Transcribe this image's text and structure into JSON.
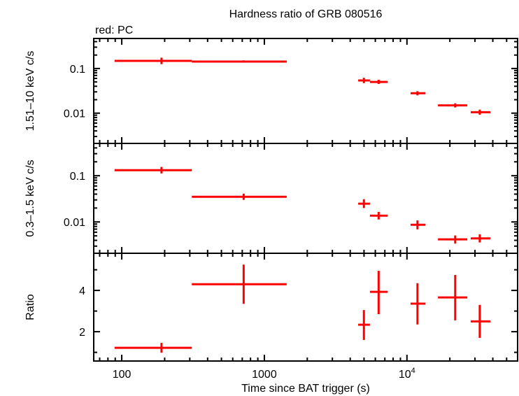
{
  "chart_data": {
    "type": "scatter",
    "title": "Hardness ratio of GRB 080516",
    "legend_note": "red: PC",
    "xlabel": "Time since BAT trigger (s)",
    "xscale": "log",
    "xlim": [
      63.6,
      59700
    ],
    "xticks": [
      {
        "v": 100,
        "label": "100"
      },
      {
        "v": 1000,
        "label": "1000"
      },
      {
        "v": 10000,
        "label": "10",
        "sup": "4"
      }
    ],
    "series_color": "#ff0000",
    "x": [
      {
        "v": 190,
        "lo": 89,
        "hi": 310
      },
      {
        "v": 716,
        "lo": 310,
        "hi": 1435
      },
      {
        "v": 4990,
        "lo": 4550,
        "hi": 5500
      },
      {
        "v": 6330,
        "lo": 5500,
        "hi": 7330
      },
      {
        "v": 11850,
        "lo": 10600,
        "hi": 13500
      },
      {
        "v": 21800,
        "lo": 16500,
        "hi": 26500
      },
      {
        "v": 32400,
        "lo": 28000,
        "hi": 38500
      }
    ],
    "panels": [
      {
        "ylabel": "1.51–10 keV c/s",
        "yscale": "log",
        "ylim": [
          0.0021,
          0.47
        ],
        "yticks": [
          {
            "v": 0.1,
            "label": "0.1"
          },
          {
            "v": 0.01,
            "label": "0.01"
          }
        ],
        "points": [
          {
            "y": 0.148,
            "lo": 0.125,
            "hi": 0.175
          },
          {
            "y": 0.143,
            "lo": 0.135,
            "hi": 0.152
          },
          {
            "y": 0.054,
            "lo": 0.047,
            "hi": 0.062
          },
          {
            "y": 0.05,
            "lo": 0.045,
            "hi": 0.056
          },
          {
            "y": 0.028,
            "lo": 0.025,
            "hi": 0.031
          },
          {
            "y": 0.0149,
            "lo": 0.0134,
            "hi": 0.0166
          },
          {
            "y": 0.0105,
            "lo": 0.0092,
            "hi": 0.012
          }
        ]
      },
      {
        "ylabel": "0.3–1.5 keV c/s",
        "yscale": "log",
        "ylim": [
          0.0021,
          0.5
        ],
        "yticks": [
          {
            "v": 0.1,
            "label": "0.1"
          },
          {
            "v": 0.01,
            "label": "0.01"
          }
        ],
        "points": [
          {
            "y": 0.132,
            "lo": 0.112,
            "hi": 0.155
          },
          {
            "y": 0.035,
            "lo": 0.03,
            "hi": 0.041
          },
          {
            "y": 0.0248,
            "lo": 0.02,
            "hi": 0.031
          },
          {
            "y": 0.0137,
            "lo": 0.0113,
            "hi": 0.0165
          },
          {
            "y": 0.0087,
            "lo": 0.0069,
            "hi": 0.0108
          },
          {
            "y": 0.0042,
            "lo": 0.0034,
            "hi": 0.0051
          },
          {
            "y": 0.0044,
            "lo": 0.0036,
            "hi": 0.0054
          }
        ]
      },
      {
        "ylabel": "Ratio",
        "yscale": "linear",
        "ylim": [
          0.58,
          5.8
        ],
        "yticks": [
          {
            "v": 2,
            "label": "2"
          },
          {
            "v": 4,
            "label": "4"
          }
        ],
        "points": [
          {
            "y": 1.22,
            "lo": 0.98,
            "hi": 1.46
          },
          {
            "y": 4.3,
            "lo": 3.35,
            "hi": 5.25
          },
          {
            "y": 2.34,
            "lo": 1.6,
            "hi": 3.05
          },
          {
            "y": 3.93,
            "lo": 2.85,
            "hi": 4.95
          },
          {
            "y": 3.36,
            "lo": 2.35,
            "hi": 4.35
          },
          {
            "y": 3.66,
            "lo": 2.55,
            "hi": 4.75
          },
          {
            "y": 2.5,
            "lo": 1.7,
            "hi": 3.3
          }
        ]
      }
    ]
  }
}
